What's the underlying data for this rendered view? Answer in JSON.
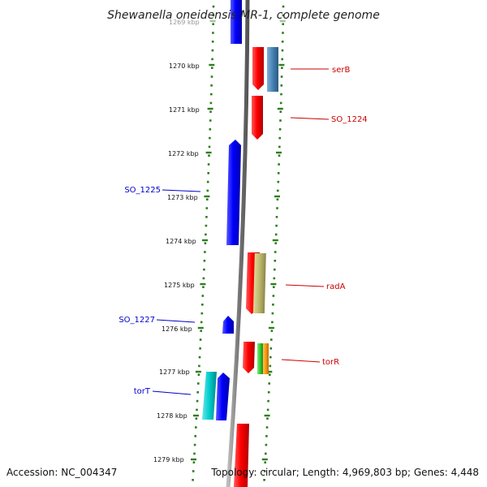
{
  "title": "Shewanella oneidensis MR-1, complete genome",
  "footer": {
    "accession": "Accession: NC_004347",
    "info": "Topology: circular; Length: 4,969,803 bp; Genes: 4,448"
  },
  "ticks": [
    {
      "label": "1269 kbp",
      "faded": true
    },
    {
      "label": "1270 kbp"
    },
    {
      "label": "1271 kbp"
    },
    {
      "label": "1272 kbp"
    },
    {
      "label": "1273 kbp"
    },
    {
      "label": "1274 kbp"
    },
    {
      "label": "1275 kbp"
    },
    {
      "label": "1276 kbp"
    },
    {
      "label": "1277 kbp"
    },
    {
      "label": "1278 kbp"
    },
    {
      "label": "1279 kbp"
    }
  ],
  "gene_labels": [
    {
      "text": "serB",
      "strand": "forward"
    },
    {
      "text": "SO_1224",
      "strand": "forward"
    },
    {
      "text": "SO_1225",
      "strand": "reverse"
    },
    {
      "text": "radA",
      "strand": "forward"
    },
    {
      "text": "SO_1227",
      "strand": "reverse"
    },
    {
      "text": "torR",
      "strand": "forward"
    },
    {
      "text": "torT",
      "strand": "reverse"
    }
  ],
  "colors": {
    "forward_gene": "#ff0000",
    "reverse_gene": "#0000ff",
    "forward_label": "#cc0000",
    "reverse_label": "#0000cc",
    "tick": "#2e7d1e",
    "backbone": "#7a7a7a",
    "cog_steelblue": "#4682b4",
    "cog_khaki": "#bdb76b",
    "cog_green": "#33cc33",
    "cog_orange": "#ff9900",
    "cog_cyan": "#00cccc"
  }
}
